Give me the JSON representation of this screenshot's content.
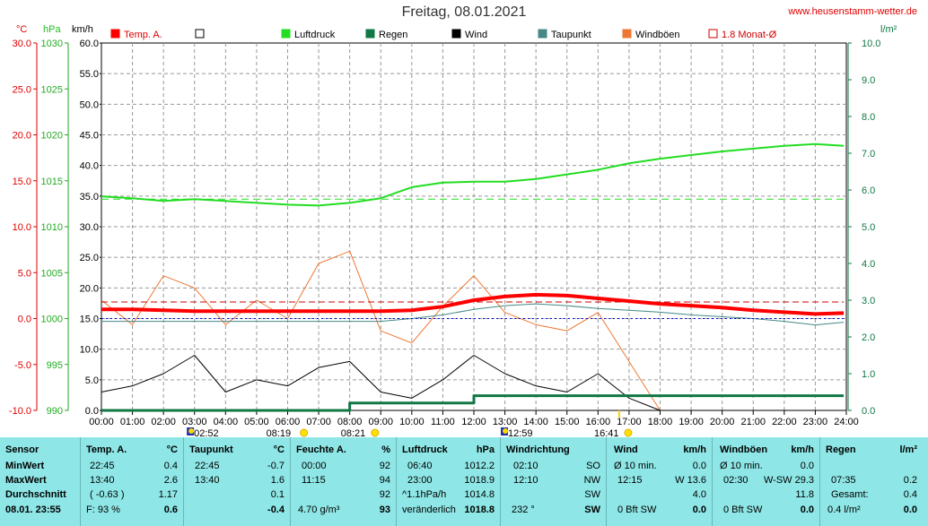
{
  "title": "Freitag, 08.01.2021",
  "site": "www.heusenstamm-wetter.de",
  "axes": {
    "temp_unit": "°C",
    "press_unit": "hPa",
    "wind_unit": "km/h",
    "rain_unit": "l/m²",
    "temp_ticks": [
      "30.0",
      "25.0",
      "20.0",
      "15.0",
      "10.0",
      "5.0",
      "0.0",
      "-5.0",
      "-10.0"
    ],
    "press_ticks": [
      "1030",
      "1025",
      "1020",
      "1015",
      "1010",
      "1005",
      "1000",
      "995",
      "990"
    ],
    "wind_ticks": [
      "60.0",
      "55.0",
      "50.0",
      "45.0",
      "40.0",
      "35.0",
      "30.0",
      "25.0",
      "20.0",
      "15.0",
      "10.0",
      "5.0",
      "0.0"
    ],
    "rain_ticks": [
      "10.0",
      "9.0",
      "8.0",
      "7.0",
      "6.0",
      "5.0",
      "4.0",
      "3.0",
      "2.0",
      "1.0",
      "0.0"
    ],
    "x_ticks": [
      "00:00",
      "01:00",
      "02:00",
      "03:00",
      "04:00",
      "05:00",
      "06:00",
      "07:00",
      "08:00",
      "09:00",
      "10:00",
      "11:00",
      "12:00",
      "13:00",
      "14:00",
      "15:00",
      "16:00",
      "17:00",
      "18:00",
      "19:00",
      "20:00",
      "21:00",
      "22:00",
      "23:00",
      "24:00"
    ]
  },
  "legend": [
    {
      "label": "Temp. A.",
      "color": "#ff0000"
    },
    {
      "label": "",
      "color": "#ffffff"
    },
    {
      "label": "Luftdruck",
      "color": "#22dd22"
    },
    {
      "label": "Regen",
      "color": "#117744"
    },
    {
      "label": "Wind",
      "color": "#000000"
    },
    {
      "label": "Taupunkt",
      "color": "#448888"
    },
    {
      "label": "Windböen",
      "color": "#ee7733"
    },
    {
      "label": "1.8 Monat-Ø",
      "color": "#cc0000"
    }
  ],
  "markers": {
    "sunrise": "08:19",
    "sun_up": "08:21",
    "moonrise": "02:52",
    "moon_transit": "12:59",
    "sunset": "16:41"
  },
  "chart_data": {
    "type": "line",
    "x": [
      "00:00",
      "01:00",
      "02:00",
      "03:00",
      "04:00",
      "05:00",
      "06:00",
      "07:00",
      "08:00",
      "09:00",
      "10:00",
      "11:00",
      "12:00",
      "13:00",
      "14:00",
      "15:00",
      "16:00",
      "17:00",
      "18:00",
      "19:00",
      "20:00",
      "21:00",
      "22:00",
      "23:00",
      "23:55"
    ],
    "xlim": [
      "00:00",
      "24:00"
    ],
    "series": [
      {
        "name": "Temp. A.",
        "axis": "°C",
        "color": "#ff0000",
        "ylim": [
          -10,
          30
        ],
        "values": [
          1.0,
          1.0,
          0.9,
          0.8,
          0.8,
          0.8,
          0.8,
          0.8,
          0.8,
          0.8,
          0.9,
          1.3,
          2.0,
          2.4,
          2.6,
          2.5,
          2.2,
          1.9,
          1.6,
          1.4,
          1.2,
          0.9,
          0.7,
          0.5,
          0.6
        ]
      },
      {
        "name": "Taupunkt",
        "axis": "°C",
        "color": "#448888",
        "ylim": [
          -10,
          30
        ],
        "values": [
          -0.3,
          -0.3,
          -0.3,
          -0.3,
          -0.3,
          -0.3,
          -0.3,
          -0.3,
          -0.3,
          -0.3,
          0.0,
          0.4,
          1.0,
          1.4,
          1.6,
          1.4,
          1.1,
          0.9,
          0.7,
          0.4,
          0.2,
          0.0,
          -0.3,
          -0.7,
          -0.4
        ]
      },
      {
        "name": "Luftdruck",
        "axis": "hPa",
        "color": "#22dd22",
        "ylim": [
          990,
          1030
        ],
        "values": [
          1013.3,
          1013.1,
          1012.8,
          1013.0,
          1012.8,
          1012.6,
          1012.4,
          1012.3,
          1012.6,
          1013.1,
          1014.3,
          1014.8,
          1014.9,
          1014.9,
          1015.2,
          1015.7,
          1016.2,
          1016.9,
          1017.4,
          1017.8,
          1018.2,
          1018.5,
          1018.8,
          1019.0,
          1018.8
        ]
      },
      {
        "name": "Regen",
        "axis": "l/m²",
        "color": "#117744",
        "ylim": [
          0,
          10
        ],
        "values": [
          0,
          0,
          0,
          0,
          0,
          0,
          0,
          0,
          0.2,
          0.2,
          0.2,
          0.2,
          0.4,
          0.4,
          0.4,
          0.4,
          0.4,
          0.4,
          0.4,
          0.4,
          0.4,
          0.4,
          0.4,
          0.4,
          0.4
        ]
      },
      {
        "name": "Wind",
        "axis": "km/h",
        "color": "#000000",
        "ylim": [
          0,
          60
        ],
        "values": [
          3,
          4,
          6,
          9,
          3,
          5,
          4,
          7,
          8,
          3,
          2,
          5,
          9,
          6,
          4,
          3,
          6,
          2,
          0,
          0,
          0,
          0,
          0,
          0,
          0
        ]
      },
      {
        "name": "Windböen",
        "axis": "km/h",
        "color": "#ee7733",
        "ylim": [
          0,
          60
        ],
        "values": [
          18,
          14,
          22,
          20,
          14,
          18,
          15,
          24,
          26,
          13,
          11,
          17,
          22,
          16,
          14,
          13,
          16,
          8,
          0,
          0,
          0,
          0,
          0,
          0,
          0
        ]
      },
      {
        "name": "1.8 Monat-Ø",
        "axis": "°C",
        "color": "#cc0000",
        "ylim": [
          -10,
          30
        ],
        "values": [
          1.8,
          1.8,
          1.8,
          1.8,
          1.8,
          1.8,
          1.8,
          1.8,
          1.8,
          1.8,
          1.8,
          1.8,
          1.8,
          1.8,
          1.8,
          1.8,
          1.8,
          1.8,
          1.8,
          1.8,
          1.8,
          1.8,
          1.8,
          1.8,
          1.8
        ]
      }
    ]
  },
  "table": {
    "sensor": {
      "head": "Sensor",
      "rows": [
        "MinWert",
        "MaxWert",
        "Durchschnitt"
      ],
      "foot": "08.01.  23:55"
    },
    "temp": {
      "head": "Temp. A.",
      "unit": "°C",
      "min_t": "22:45",
      "min_v": "0.4",
      "max_t": "13:40",
      "max_v": "2.6",
      "avg_t": "( -0.63 )",
      "avg_v": "1.17",
      "foot_l": "F: 93 %",
      "foot_v": "0.6"
    },
    "dew": {
      "head": "Taupunkt",
      "unit": "°C",
      "min_t": "22:45",
      "min_v": "-0.7",
      "max_t": "13:40",
      "max_v": "1.6",
      "avg_v": "0.1",
      "foot_v": "-0.4"
    },
    "hum": {
      "head": "Feuchte A.",
      "unit": "%",
      "min_t": "00:00",
      "min_v": "92",
      "max_t": "11:15",
      "max_v": "94",
      "avg_v": "92",
      "foot_l": "4.70 g/m³",
      "foot_v": "93"
    },
    "press": {
      "head": "Luftdruck",
      "unit": "hPa",
      "min_t": "06:40",
      "min_v": "1012.2",
      "max_t": "23:00",
      "max_v": "1018.9",
      "avg_t": "^1.1hPa/h",
      "avg_v": "1014.8",
      "foot_l": "veränderlich",
      "foot_v": "1018.8"
    },
    "dir": {
      "head": "Windrichtung",
      "min_t": "02:10",
      "min_v": "SO",
      "max_t": "12:10",
      "max_v": "NW",
      "avg_v": "SW",
      "foot_l": "232 °",
      "foot_v": "SW"
    },
    "wind": {
      "head": "Wind",
      "unit": "km/h",
      "min_t": "Ø 10 min.",
      "min_v": "0.0",
      "max_t": "12:15",
      "max_m": "W 13.6",
      "avg_v": "4.0",
      "foot_l": "0 Bft SW",
      "foot_v": "0.0"
    },
    "gust": {
      "head": "Windböen",
      "unit": "km/h",
      "min_t": "Ø 10 min.",
      "min_v": "0.0",
      "max_t": "02:30",
      "max_m": "W-SW 29.3",
      "avg_v": "11.8",
      "foot_l": "0 Bft SW",
      "foot_v": "0.0"
    },
    "rain": {
      "head": "Regen",
      "unit": "l/m²",
      "max_t": "07:35",
      "max_v": "0.2",
      "avg_t": "Gesamt:",
      "avg_v": "0.4",
      "foot_l": "0.4 l/m²",
      "foot_v": "0.0"
    }
  }
}
